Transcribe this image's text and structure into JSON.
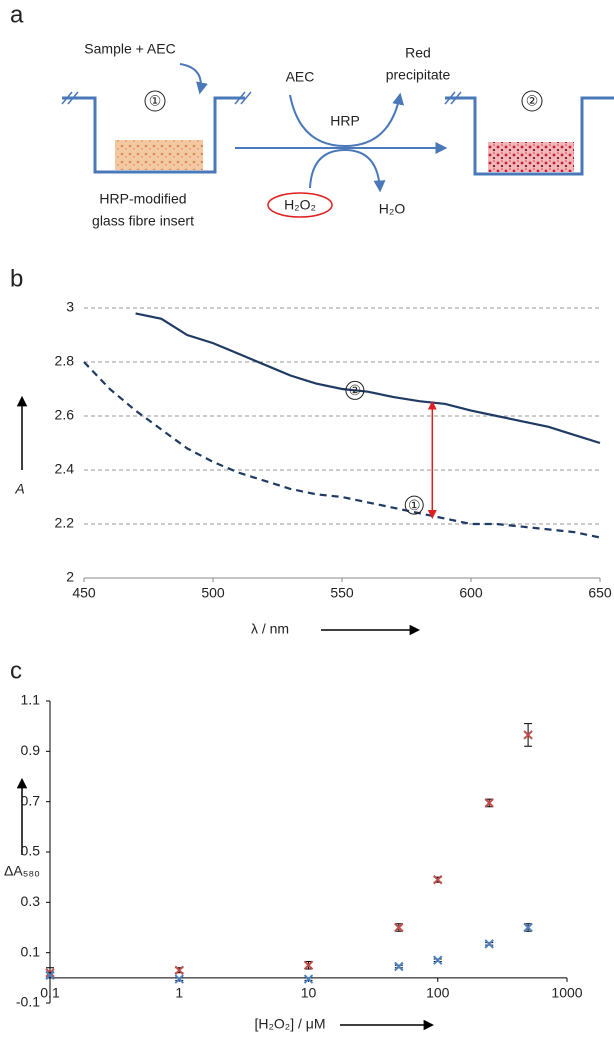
{
  "panel_a": {
    "label": "a",
    "sample": "Sample + AEC",
    "well1": "①",
    "insert": [
      "HRP-modified",
      "glass fibre insert"
    ],
    "aec": "AEC",
    "product": [
      "Red",
      "precipitate"
    ],
    "enzyme": "HRP",
    "substrate": "H₂O₂",
    "water": "H₂O",
    "well2": "②"
  },
  "chart_data": [
    {
      "type": "line",
      "panel": "b",
      "xlabel": "λ / nm",
      "ylabel": "A",
      "x": [
        450,
        460,
        470,
        480,
        490,
        500,
        510,
        520,
        530,
        540,
        550,
        560,
        570,
        580,
        590,
        600,
        610,
        620,
        630,
        640,
        650
      ],
      "series": [
        {
          "color": "#1f3b63",
          "dashed": false,
          "values": [
            null,
            null,
            2.98,
            2.96,
            2.9,
            2.87,
            2.83,
            2.79,
            2.75,
            2.72,
            2.7,
            2.69,
            2.67,
            2.655,
            2.645,
            2.62,
            2.6,
            2.58,
            2.56,
            2.53,
            2.5
          ]
        },
        {
          "color": "#1f3b63",
          "dashed": true,
          "values": [
            2.8,
            2.7,
            2.62,
            2.55,
            2.48,
            2.43,
            2.39,
            2.36,
            2.33,
            2.31,
            2.3,
            2.28,
            2.26,
            2.24,
            2.22,
            2.2,
            2.2,
            2.19,
            2.18,
            2.17,
            2.15
          ]
        }
      ],
      "annotations": [
        {
          "text": "②",
          "x": 555,
          "y": 2.695
        },
        {
          "text": "①",
          "x": 578,
          "y": 2.27
        }
      ],
      "arrow": {
        "x": 585,
        "from": 2.225,
        "to": 2.65,
        "color": "#e02020"
      },
      "xlim": [
        450,
        650
      ],
      "xticks": [
        450,
        500,
        550,
        600,
        650
      ],
      "ylim": [
        2,
        3
      ],
      "yticks": [
        2,
        2.2,
        2.4,
        2.6,
        2.8,
        3
      ],
      "grid": true
    },
    {
      "type": "scatter",
      "panel": "c",
      "xlabel": "[H₂O₂] / μM",
      "ylabel": "ΔA₅₈₀",
      "xscale": "log",
      "x": [
        0.1,
        1,
        10,
        50,
        100,
        250,
        500
      ],
      "series": [
        {
          "color": "#c0504d",
          "values": [
            0.02,
            0.03,
            0.05,
            0.2,
            0.39,
            0.695,
            0.965
          ],
          "errors": [
            0.02,
            0.01,
            0.015,
            0.015,
            0.01,
            0.015,
            0.045
          ]
        },
        {
          "color": "#4f81bd",
          "values": [
            0.01,
            -0.005,
            -0.005,
            0.045,
            0.07,
            0.135,
            0.2
          ],
          "errors": [
            0.01,
            0.005,
            0.005,
            0.005,
            0.005,
            0.005,
            0.015
          ]
        }
      ],
      "xlim": [
        0.1,
        1000
      ],
      "xticks": [
        0.1,
        1,
        10,
        100,
        1000
      ],
      "ylim": [
        -0.1,
        1.1
      ],
      "yticks": [
        -0.1,
        0.1,
        0.3,
        0.5,
        0.7,
        0.9,
        1.1
      ],
      "grid": false
    }
  ]
}
